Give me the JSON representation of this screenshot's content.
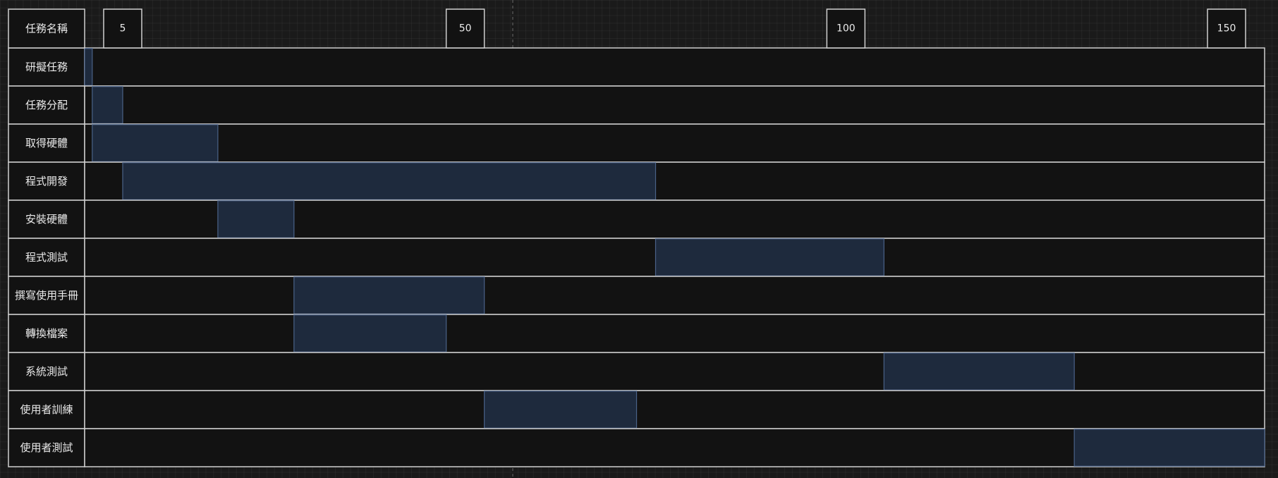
{
  "chart_data": {
    "type": "gantt",
    "header_label": "任務名稱",
    "x_ticks": [
      5,
      50,
      100,
      150
    ],
    "x_range": [
      0,
      155
    ],
    "tasks": [
      {
        "name": "研擬任務",
        "start": 0,
        "end": 1
      },
      {
        "name": "任務分配",
        "start": 1,
        "end": 5
      },
      {
        "name": "取得硬體",
        "start": 1,
        "end": 17.5
      },
      {
        "name": "程式開發",
        "start": 5,
        "end": 75
      },
      {
        "name": "安裝硬體",
        "start": 17.5,
        "end": 27.5
      },
      {
        "name": "程式測試",
        "start": 75,
        "end": 105
      },
      {
        "name": "撰寫使用手冊",
        "start": 27.5,
        "end": 52.5
      },
      {
        "name": "轉換檔案",
        "start": 27.5,
        "end": 47.5
      },
      {
        "name": "系統測試",
        "start": 105,
        "end": 130
      },
      {
        "name": "使用者訓練",
        "start": 52.5,
        "end": 72.5
      },
      {
        "name": "使用者測試",
        "start": 130,
        "end": 155
      }
    ],
    "colors": {
      "bar_fill": "#1e2a3d",
      "bar_stroke": "#4a6288",
      "row_fill": "#121212",
      "border": "#cfcfcf",
      "text": "#eaeaea"
    }
  }
}
